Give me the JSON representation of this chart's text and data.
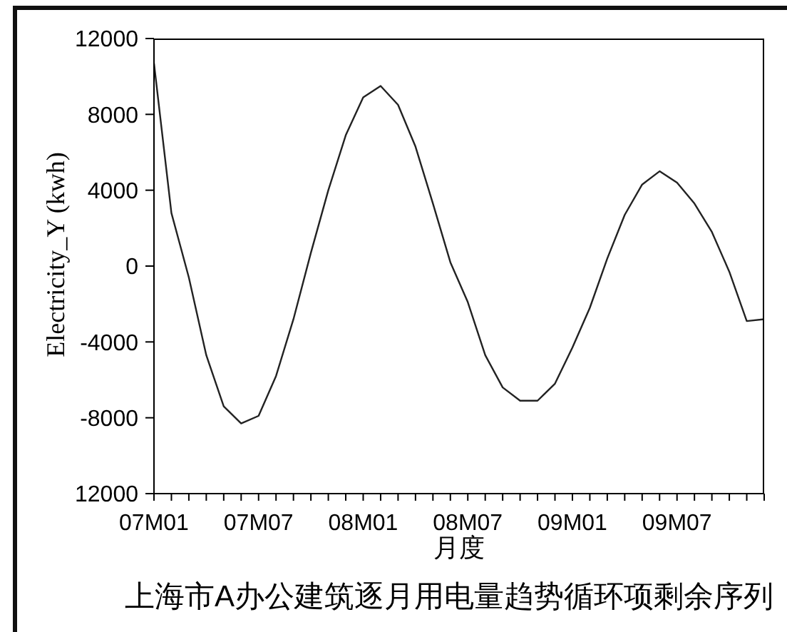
{
  "chart_data": {
    "type": "line",
    "title": "上海市A办公建筑逐月用电量趋势循环项剩余序列",
    "xlabel": "月度",
    "ylabel": "Electricity_Y (kwh)",
    "categories": [
      "07M01",
      null,
      null,
      null,
      null,
      null,
      "07M07",
      null,
      null,
      null,
      null,
      null,
      "08M01",
      null,
      null,
      null,
      null,
      null,
      "08M07",
      null,
      null,
      null,
      null,
      null,
      "09M01",
      null,
      null,
      null,
      null,
      null,
      "09M07",
      null,
      null,
      null,
      null,
      null
    ],
    "series": [
      {
        "color": "#222222",
        "values": [
          10700,
          2800,
          -600,
          -4700,
          -7400,
          -8300,
          -7900,
          -5800,
          -2800,
          700,
          4000,
          6900,
          8900,
          9500,
          8500,
          6300,
          3300,
          200,
          -1900,
          -4700,
          -6400,
          -7100,
          -7100,
          -6200,
          -4300,
          -2200,
          400,
          2700,
          4300,
          5000,
          4400,
          3300,
          1800,
          -300,
          -2900,
          -2800
        ]
      }
    ],
    "ylim": [
      -12000,
      12000
    ],
    "yticks": [
      {
        "value": -12000,
        "label": "12000"
      },
      -8000,
      -4000,
      0,
      4000,
      8000,
      12000
    ]
  }
}
